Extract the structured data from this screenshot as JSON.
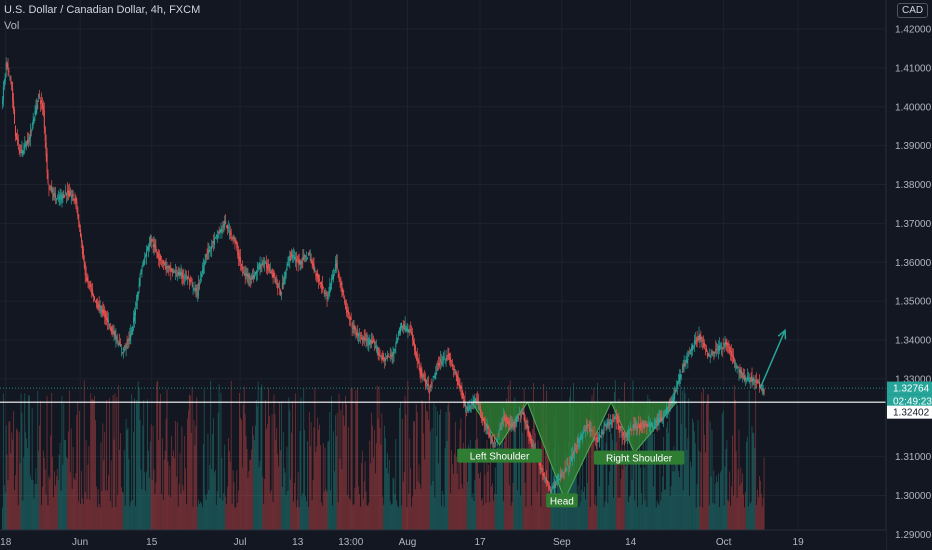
{
  "header": {
    "title": "U.S. Dollar / Canadian Dollar, 4h, FXCM",
    "volume_label": "Vol",
    "currency": "CAD"
  },
  "colors": {
    "background": "#131722",
    "grid": "#1e222d",
    "axis_text": "#b2b5be",
    "up": "#26a69a",
    "down": "#ef5350",
    "pattern_fill": "#2e7d32",
    "arrow": "#26a69a"
  },
  "price_boxes": {
    "current": "1.32764",
    "countdown": "02:49:23",
    "line": "1.32402"
  },
  "pattern": {
    "left_shoulder": "Left Shoulder",
    "head": "Head",
    "right_shoulder": "Right Shoulder"
  },
  "chart_data": {
    "type": "candlestick",
    "title": "U.S. Dollar / Canadian Dollar, 4h, FXCM",
    "ylim": [
      1.2875,
      1.4225
    ],
    "y_ticks": [
      "1.42000",
      "1.41000",
      "1.40000",
      "1.39000",
      "1.38000",
      "1.37000",
      "1.36000",
      "1.35000",
      "1.34000",
      "1.33000",
      "1.31000",
      "1.30000",
      "1.29000"
    ],
    "x_ticks": [
      {
        "label": "18",
        "t": 0.4
      },
      {
        "label": "Jun",
        "t": 8.4
      },
      {
        "label": "15",
        "t": 16.1
      },
      {
        "label": "Jul",
        "t": 25.6
      },
      {
        "label": "13",
        "t": 31.8
      },
      {
        "label": "13:00",
        "t": 37.5
      },
      {
        "label": "Aug",
        "t": 43.6
      },
      {
        "label": "17",
        "t": 51.4
      },
      {
        "label": "Sep",
        "t": 60.2
      },
      {
        "label": "14",
        "t": 67.6
      },
      {
        "label": "Oct",
        "t": 77.6
      },
      {
        "label": "19",
        "t": 85.6
      }
    ],
    "price_path": [
      [
        0,
        1.4
      ],
      [
        0.5,
        1.411
      ],
      [
        1,
        1.407
      ],
      [
        1.5,
        1.393
      ],
      [
        2,
        1.388
      ],
      [
        3,
        1.392
      ],
      [
        4,
        1.403
      ],
      [
        4.5,
        1.399
      ],
      [
        5,
        1.38
      ],
      [
        6,
        1.376
      ],
      [
        7,
        1.378
      ],
      [
        8,
        1.376
      ],
      [
        9,
        1.357
      ],
      [
        10,
        1.35
      ],
      [
        11,
        1.347
      ],
      [
        12,
        1.342
      ],
      [
        13,
        1.337
      ],
      [
        14,
        1.342
      ],
      [
        15,
        1.358
      ],
      [
        16,
        1.366
      ],
      [
        17,
        1.361
      ],
      [
        18,
        1.358
      ],
      [
        19,
        1.357
      ],
      [
        20,
        1.356
      ],
      [
        21,
        1.352
      ],
      [
        22,
        1.362
      ],
      [
        23,
        1.366
      ],
      [
        24,
        1.37
      ],
      [
        25,
        1.366
      ],
      [
        26,
        1.357
      ],
      [
        27,
        1.356
      ],
      [
        28,
        1.36
      ],
      [
        29,
        1.358
      ],
      [
        30,
        1.352
      ],
      [
        31,
        1.362
      ],
      [
        32,
        1.36
      ],
      [
        33,
        1.362
      ],
      [
        34,
        1.356
      ],
      [
        35,
        1.351
      ],
      [
        36,
        1.36
      ],
      [
        37,
        1.348
      ],
      [
        38,
        1.342
      ],
      [
        39,
        1.34
      ],
      [
        40,
        1.339
      ],
      [
        41,
        1.335
      ],
      [
        42,
        1.336
      ],
      [
        43,
        1.344
      ],
      [
        44,
        1.342
      ],
      [
        45,
        1.332
      ],
      [
        46,
        1.327
      ],
      [
        47,
        1.334
      ],
      [
        48,
        1.336
      ],
      [
        49,
        1.33
      ],
      [
        50,
        1.322
      ],
      [
        51,
        1.325
      ],
      [
        52,
        1.318
      ],
      [
        53,
        1.313
      ],
      [
        54,
        1.32
      ],
      [
        55,
        1.318
      ],
      [
        56,
        1.322
      ],
      [
        57,
        1.313
      ],
      [
        58,
        1.307
      ],
      [
        59,
        1.301
      ],
      [
        60,
        1.305
      ],
      [
        61,
        1.308
      ],
      [
        62,
        1.314
      ],
      [
        63,
        1.318
      ],
      [
        64,
        1.314
      ],
      [
        65,
        1.318
      ],
      [
        66,
        1.32
      ],
      [
        67,
        1.315
      ],
      [
        68,
        1.318
      ],
      [
        69,
        1.318
      ],
      [
        70,
        1.318
      ],
      [
        71,
        1.32
      ],
      [
        72,
        1.324
      ],
      [
        73,
        1.331
      ],
      [
        74,
        1.337
      ],
      [
        75,
        1.341
      ],
      [
        76,
        1.336
      ],
      [
        77,
        1.338
      ],
      [
        78,
        1.339
      ],
      [
        79,
        1.333
      ],
      [
        80,
        1.33
      ],
      [
        81,
        1.33
      ],
      [
        82,
        1.327
      ]
    ],
    "pattern_points": [
      [
        50.5,
        1.324
      ],
      [
        53.5,
        1.313
      ],
      [
        56.5,
        1.324
      ],
      [
        60.5,
        1.299
      ],
      [
        65.5,
        1.324
      ],
      [
        68,
        1.311
      ],
      [
        72.5,
        1.324
      ]
    ],
    "neckline": 1.324,
    "label_points": {
      "left_shoulder": [
        53.5,
        1.31
      ],
      "head": [
        60.2,
        1.2985
      ],
      "right_shoulder": [
        68.5,
        1.3095
      ]
    },
    "arrow": {
      "from": [
        81.5,
        1.3275
      ],
      "to": [
        84.2,
        1.3425
      ]
    },
    "volume": {
      "max_fraction": 0.3
    },
    "annotations": [
      "Left Shoulder",
      "Head",
      "Right Shoulder"
    ]
  }
}
